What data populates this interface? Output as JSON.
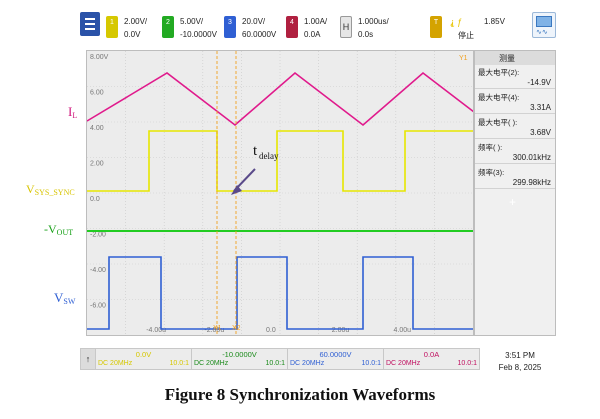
{
  "colors": {
    "ch1": "#e6e600",
    "ch2": "#22cc22",
    "ch3": "#2f5fd3",
    "ch4": "#e01a8c",
    "cursor": "#f0a020",
    "grid": "#c9c9c9"
  },
  "toolbar": {
    "menu_icon": "menu-icon",
    "channels": [
      {
        "id": "1",
        "scale": "2.00V/",
        "offset": "0.0V"
      },
      {
        "id": "2",
        "scale": "5.00V/",
        "offset": "-10.0000V"
      },
      {
        "id": "3",
        "scale": "20.0V/",
        "offset": "60.0000V"
      },
      {
        "id": "4",
        "scale": "1.00A/",
        "offset": "0.0A"
      }
    ],
    "horizontal": {
      "tag": "H",
      "scale": "1.000us/",
      "position": "0.0s"
    },
    "trigger": {
      "tag": "T",
      "level": "1.85V",
      "status": "停止"
    },
    "window_icon": "display-icon"
  },
  "screen": {
    "y_ticks": [
      "8.00V",
      "6.00",
      "4.00",
      "2.00",
      "0.0",
      "-2.00",
      "-4.00",
      "-6.00"
    ],
    "x_ticks": [
      "-4.00u",
      "-2.00u",
      "0.0",
      "2.00u",
      "4.00u"
    ],
    "markers": {
      "x1": "X1",
      "x2": "X2",
      "y1": "Y1"
    },
    "delay_label": "t",
    "delay_sub": "delay"
  },
  "measurements": {
    "header": "测量",
    "items": [
      {
        "label": "最大电平(2):",
        "value": "-14.9V"
      },
      {
        "label": "最大电平(4):",
        "value": "3.31A"
      },
      {
        "label": "最大电平( ):",
        "value": "3.68V"
      },
      {
        "label": "频率( ):",
        "value": "300.01kHz"
      },
      {
        "label": "频率(3):",
        "value": "299.98kHz"
      }
    ],
    "add_symbol": "+"
  },
  "statusbar": {
    "up_symbol": "↑",
    "channels": [
      {
        "top": "0.0V",
        "coupling": "DC 20MHz",
        "probe": "10.0:1"
      },
      {
        "top": "-10.0000V",
        "coupling": "DC 20MHz",
        "probe": "10.0:1"
      },
      {
        "top": "60.0000V",
        "coupling": "DC 20MHz",
        "probe": "10.0:1"
      },
      {
        "top": "0.0A",
        "coupling": "DC 20MHz",
        "probe": "10.0:1"
      }
    ]
  },
  "clock": {
    "time": "3:51 PM",
    "date": "Feb 8, 2025"
  },
  "annotations": {
    "il_main": "I",
    "il_sub": "L",
    "vsys_main": "V",
    "vsys_sub": "SYS_SYNC",
    "vout_main": "-V",
    "vout_sub": "OUT",
    "vsw_main": "V",
    "vsw_sub": "SW"
  },
  "caption": "Figure 8 Synchronization Waveforms"
}
